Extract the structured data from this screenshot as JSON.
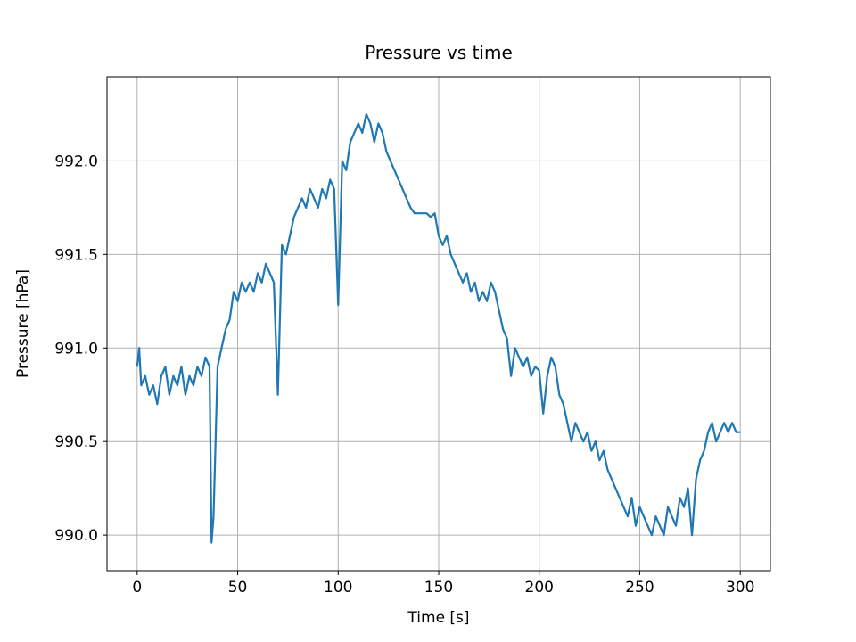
{
  "chart_data": {
    "type": "line",
    "title": "Pressure vs time",
    "x_label": "Time [s]",
    "y_label": "Pressure [hPa]",
    "color": "#1f77b4",
    "grid": true,
    "xlim": [
      -15,
      315
    ],
    "ylim": [
      989.81,
      992.45
    ],
    "xticks": [
      0,
      50,
      100,
      150,
      200,
      250,
      300
    ],
    "yticks": [
      {
        "value": 990,
        "label": "990.0"
      },
      990.5,
      {
        "value": 991,
        "label": "991.0"
      },
      991.5,
      {
        "value": 992,
        "label": "992.0"
      }
    ],
    "x": [
      0,
      1,
      2,
      4,
      6,
      8,
      10,
      12,
      14,
      16,
      18,
      20,
      22,
      24,
      26,
      28,
      30,
      32,
      34,
      36,
      37,
      38,
      40,
      42,
      44,
      46,
      48,
      50,
      52,
      54,
      56,
      58,
      60,
      62,
      64,
      66,
      68,
      70,
      72,
      74,
      76,
      78,
      80,
      82,
      84,
      86,
      88,
      90,
      92,
      94,
      96,
      98,
      100,
      102,
      104,
      106,
      108,
      110,
      112,
      114,
      116,
      118,
      120,
      122,
      124,
      126,
      128,
      130,
      132,
      134,
      136,
      138,
      140,
      142,
      144,
      146,
      148,
      150,
      152,
      154,
      156,
      158,
      160,
      162,
      164,
      166,
      168,
      170,
      172,
      174,
      176,
      178,
      180,
      182,
      184,
      186,
      188,
      190,
      192,
      194,
      196,
      198,
      200,
      202,
      204,
      206,
      208,
      210,
      212,
      214,
      216,
      218,
      220,
      222,
      224,
      226,
      228,
      230,
      232,
      234,
      236,
      238,
      240,
      242,
      244,
      246,
      248,
      250,
      252,
      254,
      256,
      258,
      260,
      262,
      264,
      266,
      268,
      270,
      272,
      274,
      276,
      278,
      280,
      282,
      284,
      286,
      288,
      290,
      292,
      294,
      296,
      298,
      300
    ],
    "values": [
      990.9,
      991.0,
      990.8,
      990.85,
      990.75,
      990.8,
      990.7,
      990.85,
      990.9,
      990.75,
      990.85,
      990.8,
      990.9,
      990.75,
      990.85,
      990.8,
      990.9,
      990.85,
      990.95,
      990.9,
      989.96,
      990.1,
      990.9,
      991.0,
      991.1,
      991.15,
      991.3,
      991.25,
      991.35,
      991.3,
      991.35,
      991.3,
      991.4,
      991.35,
      991.45,
      991.4,
      991.35,
      990.75,
      991.55,
      991.5,
      991.6,
      991.7,
      991.75,
      991.8,
      991.75,
      991.85,
      991.8,
      991.75,
      991.85,
      991.8,
      991.9,
      991.85,
      991.23,
      992.0,
      991.95,
      992.1,
      992.15,
      992.2,
      992.15,
      992.25,
      992.2,
      992.1,
      992.2,
      992.15,
      992.05,
      992.0,
      991.95,
      991.9,
      991.85,
      991.8,
      991.75,
      991.72,
      991.72,
      991.72,
      991.72,
      991.7,
      991.72,
      991.6,
      991.55,
      991.6,
      991.5,
      991.45,
      991.4,
      991.35,
      991.4,
      991.3,
      991.35,
      991.25,
      991.3,
      991.25,
      991.35,
      991.3,
      991.2,
      991.1,
      991.05,
      990.85,
      991.0,
      990.95,
      990.9,
      990.95,
      990.85,
      990.9,
      990.88,
      990.65,
      990.85,
      990.95,
      990.9,
      990.75,
      990.7,
      990.6,
      990.5,
      990.6,
      990.55,
      990.5,
      990.55,
      990.45,
      990.5,
      990.4,
      990.45,
      990.35,
      990.3,
      990.25,
      990.2,
      990.15,
      990.1,
      990.2,
      990.05,
      990.15,
      990.1,
      990.05,
      990.0,
      990.1,
      990.05,
      990.0,
      990.15,
      990.1,
      990.05,
      990.2,
      990.15,
      990.25,
      990.0,
      990.3,
      990.4,
      990.45,
      990.55,
      990.6,
      990.5,
      990.55,
      990.6,
      990.55,
      990.6,
      990.55,
      990.55
    ]
  }
}
